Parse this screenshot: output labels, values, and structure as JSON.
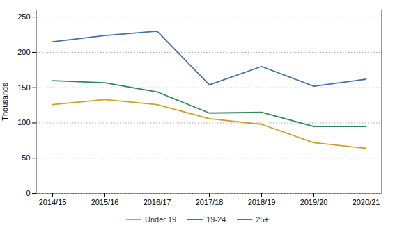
{
  "chart_data": {
    "type": "line",
    "ylabel": "Thousands",
    "categories": [
      "2014/15",
      "2015/16",
      "2016/17",
      "2017/18",
      "2018/19",
      "2019/20",
      "2020/21"
    ],
    "series": [
      {
        "name": "Under 19",
        "color": "#c9a227",
        "values": [
          126,
          133,
          126,
          106,
          98,
          72,
          64
        ]
      },
      {
        "name": "19-24",
        "color": "#2e8b57",
        "values": [
          160,
          157,
          144,
          114,
          115,
          95,
          95
        ]
      },
      {
        "name": "25+",
        "color": "#4472a8",
        "values": [
          215,
          224,
          230,
          154,
          180,
          152,
          162
        ]
      }
    ],
    "ylim": [
      0,
      260
    ],
    "yticks": [
      0,
      50,
      100,
      150,
      200,
      250
    ],
    "grid": true,
    "legend": "bottom"
  }
}
